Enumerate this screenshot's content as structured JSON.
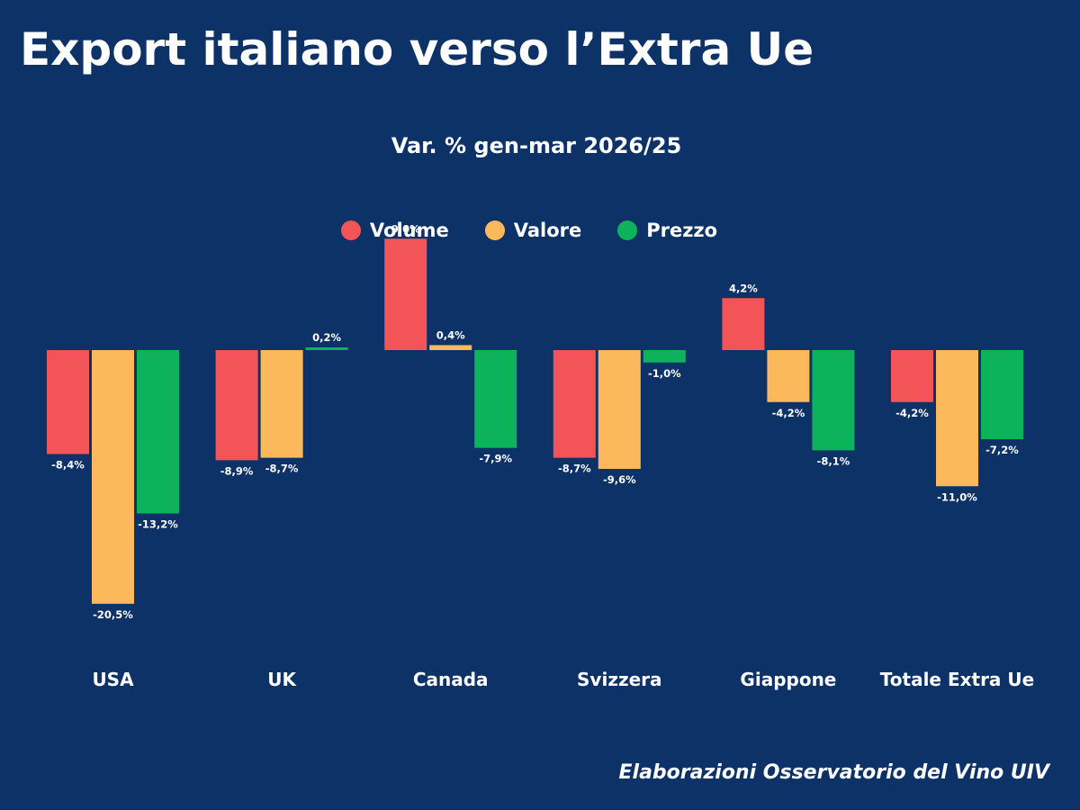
{
  "title": "Export italiano verso l’Extra Ue",
  "source": "Elaborazioni Osservatorio del Vino UIV",
  "colors": {
    "background": "#0d3268",
    "volume": "#f25458",
    "valore": "#fbb95b",
    "prezzo": "#0db35a"
  },
  "chart_data": {
    "type": "bar",
    "title": "Var. % gen-mar 2026/25",
    "legend_position": "top-center",
    "grid": false,
    "categories": [
      "USA",
      "UK",
      "Canada",
      "Svizzera",
      "Giappone",
      "Totale Extra Ue"
    ],
    "series": [
      {
        "name": "Volume",
        "color": "#f25458",
        "values": [
          -8.4,
          -8.9,
          9.0,
          -8.7,
          4.2,
          -4.2
        ],
        "labels": [
          "-8,4%",
          "-8,9%",
          "9,0%",
          "-8,7%",
          "4,2%",
          "-4,2%"
        ]
      },
      {
        "name": "Valore",
        "color": "#fbb95b",
        "values": [
          -20.5,
          -8.7,
          0.4,
          -9.6,
          -4.2,
          -11.0
        ],
        "labels": [
          "-20,5%",
          "-8,7%",
          "0,4%",
          "-9,6%",
          "-4,2%",
          "-11,0%"
        ]
      },
      {
        "name": "Prezzo",
        "color": "#0db35a",
        "values": [
          -13.2,
          0.2,
          -7.9,
          -1.0,
          -8.1,
          -7.2
        ],
        "labels": [
          "-13,2%",
          "0,2%",
          "-7,9%",
          "-1,0%",
          "-8,1%",
          "-7,2%"
        ]
      }
    ]
  }
}
